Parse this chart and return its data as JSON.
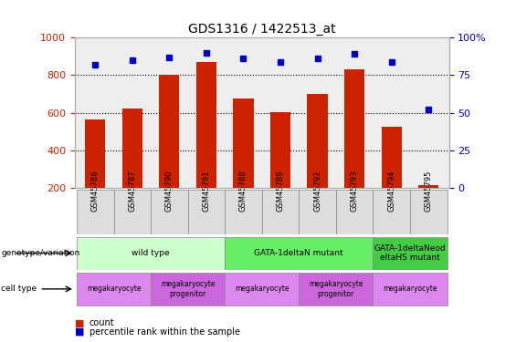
{
  "title": "GDS1316 / 1422513_at",
  "samples": [
    "GSM45786",
    "GSM45787",
    "GSM45790",
    "GSM45791",
    "GSM45788",
    "GSM45789",
    "GSM45792",
    "GSM45793",
    "GSM45794",
    "GSM45795"
  ],
  "counts": [
    565,
    625,
    800,
    870,
    675,
    605,
    700,
    830,
    525,
    215
  ],
  "percentiles": [
    82,
    85,
    87,
    90,
    86,
    84,
    86,
    89,
    84,
    52
  ],
  "ylim_left": [
    200,
    1000
  ],
  "ylim_right": [
    0,
    100
  ],
  "yticks_left": [
    200,
    400,
    600,
    800,
    1000
  ],
  "yticks_right": [
    0,
    25,
    50,
    75,
    100
  ],
  "ytick_right_labels": [
    "0",
    "25",
    "50",
    "75",
    "100%"
  ],
  "bar_color": "#cc2200",
  "dot_color": "#0000cc",
  "genotype_groups": [
    {
      "label": "wild type",
      "start": 0,
      "end": 4,
      "color": "#ccffcc"
    },
    {
      "label": "GATA-1deltaN mutant",
      "start": 4,
      "end": 8,
      "color": "#66ee66"
    },
    {
      "label": "GATA-1deltaNeod\neltaHS mutant",
      "start": 8,
      "end": 10,
      "color": "#44cc44"
    }
  ],
  "celltype_groups": [
    {
      "label": "megakaryocyte",
      "start": 0,
      "end": 2,
      "color": "#dd88ee"
    },
    {
      "label": "megakaryocyte\nprogenitor",
      "start": 2,
      "end": 4,
      "color": "#cc66dd"
    },
    {
      "label": "megakaryocyte",
      "start": 4,
      "end": 6,
      "color": "#dd88ee"
    },
    {
      "label": "megakaryocyte\nprogenitor",
      "start": 6,
      "end": 8,
      "color": "#cc66dd"
    },
    {
      "label": "megakaryocyte",
      "start": 8,
      "end": 10,
      "color": "#dd88ee"
    }
  ],
  "bar_width": 0.55,
  "figure_bg": "#ffffff",
  "ax_bg": "#eeeeee",
  "left_tick_color": "#cc2200",
  "right_tick_color": "#0000cc",
  "genotype_label": "genotype/variation",
  "celltype_label": "cell type",
  "legend_count": "count",
  "legend_pct": "percentile rank within the sample"
}
